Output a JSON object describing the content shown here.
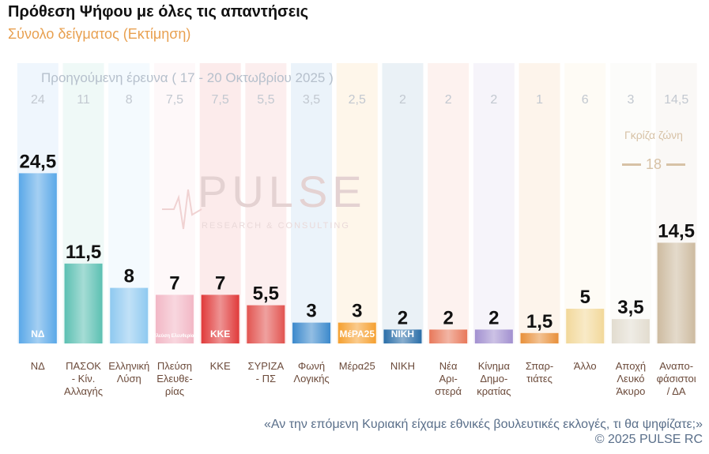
{
  "title": "Πρόθεση Ψήφου με όλες τις απαντήσεις",
  "subtitle": "Σύνολο δείγματος   (Εκτίμηση)",
  "previous_survey_label": "Προηγούμενη έρευνα ( 17 - 20 Οκτωβρίου 2025 )",
  "gray_zone": {
    "label": "Γκρίζα ζώνη",
    "value": "18"
  },
  "watermark": {
    "main": "PULSE",
    "sub": "RESEARCH & CONSULTING"
  },
  "question": "«Αν την επόμενη Κυριακή είχαμε εθνικές βουλευτικές εκλογές, τι θα ψηφίζατε;»",
  "copyright": "©  2025  PULSE RC",
  "chart_data": {
    "type": "bar",
    "categories": [
      "ΝΔ",
      "ΠΑΣΟΚ - Κίν. Αλλαγής",
      "Ελληνική Λύση",
      "Πλεύση Ελευθε-ρίας",
      "ΚΚΕ",
      "ΣΥΡΙΖΑ - ΠΣ",
      "Φωνή Λογικής",
      "Μέρα25",
      "ΝΙΚΗ",
      "Νέα Αρι-στερά",
      "Κίνημα Δημο-κρατίας",
      "Σπαρ-τιάτες",
      "Άλλο",
      "Αποχή Λευκό Άκυρο",
      "Αναπο-φάσιστοι / ΔΑ"
    ],
    "category_lines": [
      [
        "ΝΔ"
      ],
      [
        "ΠΑΣΟΚ",
        "- Κίν.",
        "Αλλαγής"
      ],
      [
        "Ελληνική",
        "Λύση"
      ],
      [
        "Πλεύση",
        "Ελευθε-",
        "ρίας"
      ],
      [
        "ΚΚΕ"
      ],
      [
        "ΣΥΡΙΖΑ",
        "- ΠΣ"
      ],
      [
        "Φωνή",
        "Λογικής"
      ],
      [
        "Μέρα25"
      ],
      [
        "ΝΙΚΗ"
      ],
      [
        "Νέα",
        "Αρι-",
        "στερά"
      ],
      [
        "Κίνημα",
        "Δημο-",
        "κρατίας"
      ],
      [
        "Σπαρ-",
        "τιάτες"
      ],
      [
        "Άλλο"
      ],
      [
        "Αποχή",
        "Λευκό",
        "Άκυρο"
      ],
      [
        "Αναπο-",
        "φάσιστοι",
        "/ ΔΑ"
      ]
    ],
    "series": [
      {
        "name": "",
        "values": [
          24.5,
          11.5,
          8,
          7,
          7,
          5.5,
          3,
          3,
          2,
          2,
          2,
          1.5,
          5,
          3.5,
          14.5
        ],
        "labels": [
          "24,5",
          "11,5",
          "8",
          "7",
          "7",
          "5,5",
          "3",
          "3",
          "2",
          "2",
          "2",
          "1,5",
          "5",
          "3,5",
          "14,5"
        ]
      },
      {
        "name": "Προηγούμενη έρευνα ( 17 - 20 Οκτωβρίου 2025 )",
        "values": [
          24,
          11,
          8,
          7.5,
          7.5,
          5.5,
          3.5,
          2.5,
          2,
          2,
          2,
          1,
          6,
          3,
          14.5
        ],
        "labels": [
          "24",
          "11",
          "8",
          "7,5",
          "7,5",
          "5,5",
          "3,5",
          "2,5",
          "2",
          "2",
          "2",
          "1",
          "6",
          "3",
          "14,5"
        ]
      }
    ],
    "colors": [
      "#5aa8e8",
      "#5cc0b2",
      "#8ec9f0",
      "#f2b7c5",
      "#e03a3a",
      "#e25450",
      "#3b89cc",
      "#f5a030",
      "#2a6ea8",
      "#e8785a",
      "#a290d0",
      "#e8903a",
      "#f2d89a",
      "#e2dccf",
      "#cdbba0"
    ],
    "logo_texts": [
      "ΝΔ",
      "",
      "",
      "Πλεύση Ελευθερίας",
      "ΚΚΕ",
      "",
      "",
      "ΜέΡΑ25",
      "ΝΙΚΗ",
      "",
      "",
      "",
      "",
      "",
      ""
    ],
    "ylim": [
      0,
      26
    ],
    "grid": false,
    "xlabel": "",
    "ylabel": ""
  }
}
